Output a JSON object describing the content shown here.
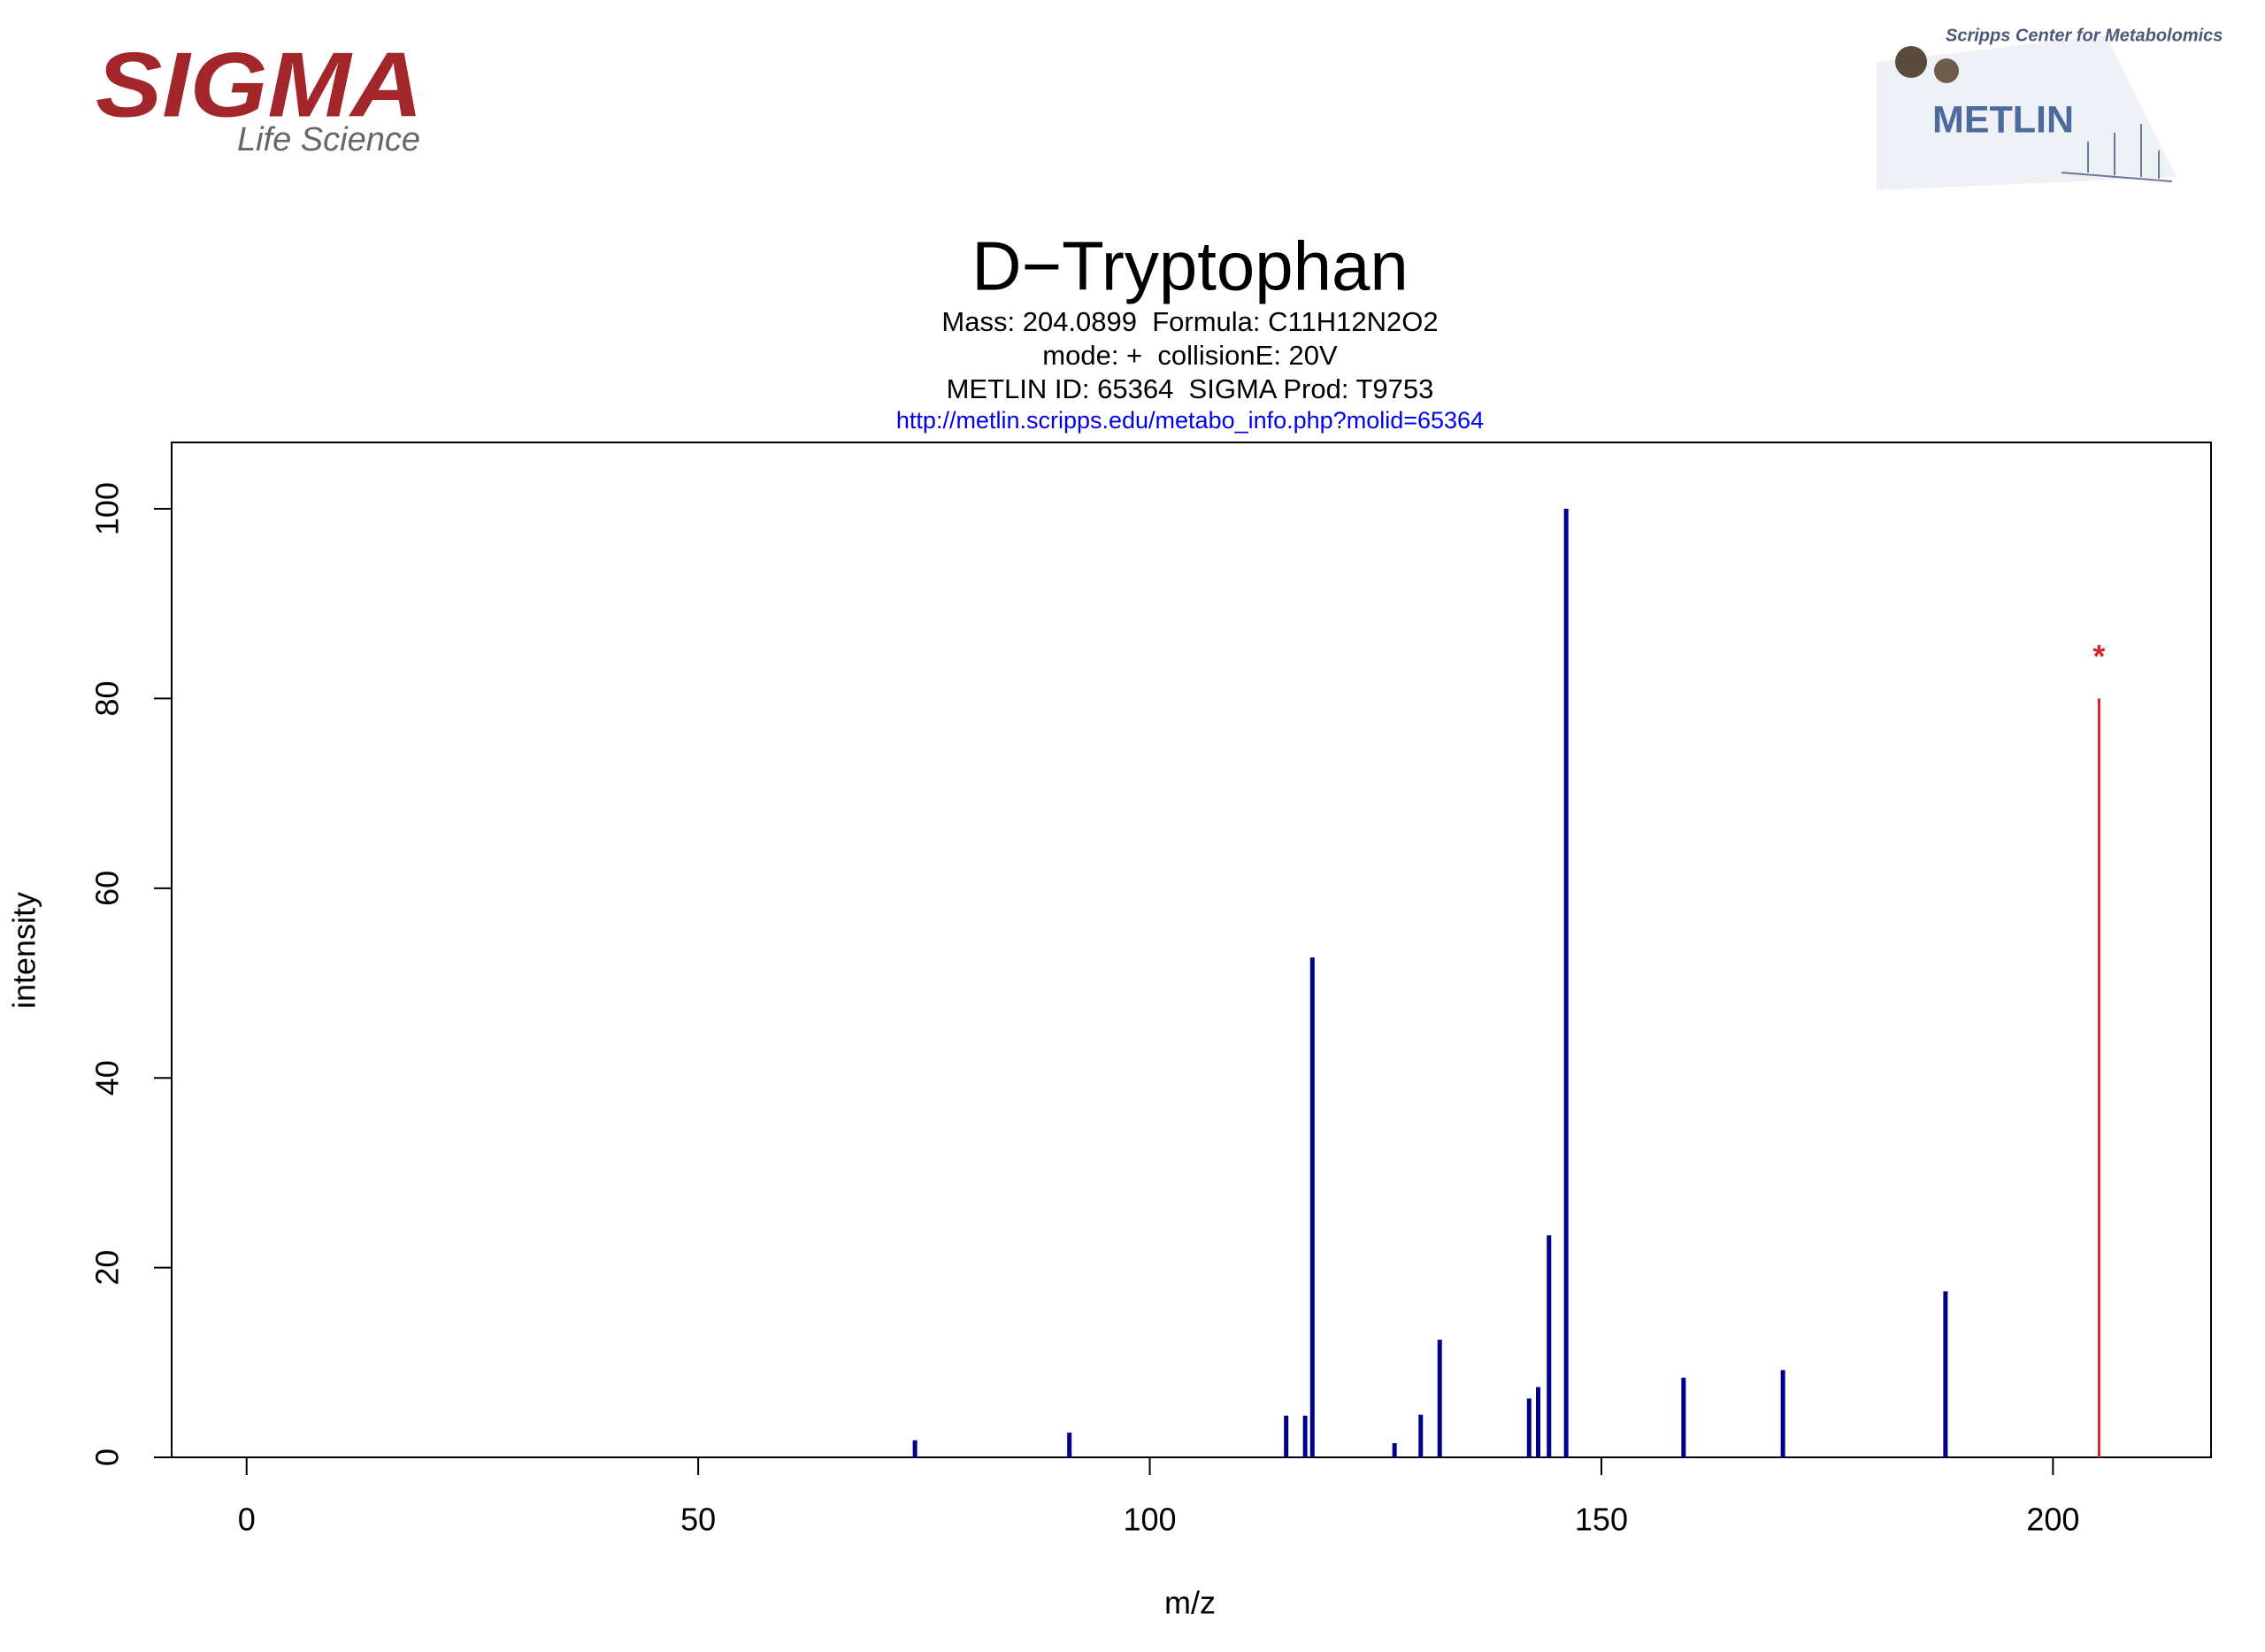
{
  "logos": {
    "sigma": {
      "name": "SIGMA",
      "tagline": "Life Science"
    },
    "metlin": {
      "caption": "Scripps Center for Metabolomics",
      "name": "METLIN"
    }
  },
  "chart_data": {
    "type": "spectrum",
    "title": "D−Tryptophan",
    "subtitle_lines": [
      "Mass: 204.0899  Formula: C11H12N2O2",
      "mode: +  collisionE: 20V",
      "METLIN ID: 65364  SIGMA Prod: T9753"
    ],
    "link": "http://metlin.scripps.edu/metabo_info.php?molid=65364",
    "xlabel": "m/z",
    "ylabel": "intensity",
    "xlim": [
      -8.3,
      217.5
    ],
    "ylim": [
      0,
      107
    ],
    "xticks": [
      0,
      50,
      100,
      150,
      200
    ],
    "yticks": [
      0,
      20,
      40,
      60,
      80,
      100
    ],
    "series": [
      {
        "color": "#00008b",
        "x": [
          74.0,
          91.1,
          115.1,
          117.2,
          118.0,
          127.1,
          130.0,
          132.1,
          142.0,
          143.0,
          144.2,
          146.1,
          159.1,
          170.1,
          188.1
        ],
        "values": [
          1.8,
          2.6,
          4.4,
          4.4,
          52.7,
          1.5,
          4.5,
          12.4,
          6.2,
          7.4,
          23.4,
          100,
          8.4,
          9.2,
          17.5
        ]
      },
      {
        "color": "#d62728",
        "x": [
          205.1
        ],
        "values": [
          80
        ],
        "marker": "*"
      }
    ]
  }
}
